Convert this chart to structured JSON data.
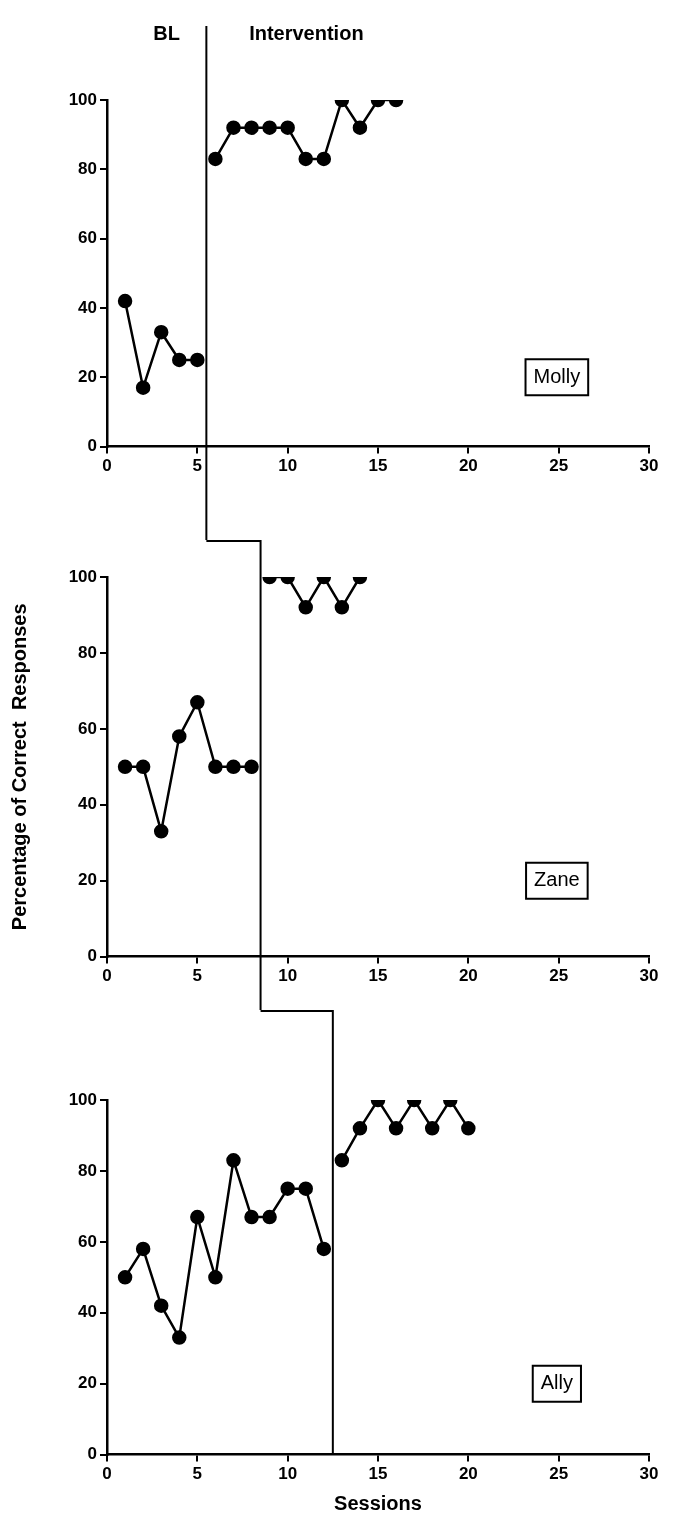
{
  "chart_data": [
    {
      "type": "line",
      "title": "Molly",
      "annotations": [
        "BL",
        "Intervention"
      ],
      "xlim": [
        0,
        30
      ],
      "xticks": [
        0,
        5,
        10,
        15,
        20,
        25,
        30
      ],
      "ylim": [
        0,
        100
      ],
      "yticks": [
        0,
        20,
        40,
        60,
        80,
        100
      ],
      "grid": false,
      "legend": false,
      "marker": "circle",
      "line_style": "solid",
      "ref_lines": [
        {
          "axis": "x",
          "value": 5.5
        }
      ],
      "series": [
        {
          "color": "#000000",
          "x": [
            1,
            2,
            3,
            4,
            5
          ],
          "values": [
            42,
            17,
            33,
            25,
            25
          ]
        },
        {
          "color": "#000000",
          "x": [
            6,
            7,
            8,
            9,
            10,
            11,
            12,
            13,
            14,
            15,
            16
          ],
          "values": [
            83,
            92,
            92,
            92,
            92,
            83,
            83,
            100,
            92,
            100,
            100
          ]
        }
      ]
    },
    {
      "type": "line",
      "title": "Zane",
      "ylabel": "Percentage of Correct  Responses",
      "xlim": [
        0,
        30
      ],
      "xticks": [
        0,
        5,
        10,
        15,
        20,
        25,
        30
      ],
      "ylim": [
        0,
        100
      ],
      "yticks": [
        0,
        20,
        40,
        60,
        80,
        100
      ],
      "grid": false,
      "legend": false,
      "marker": "circle",
      "line_style": "solid",
      "ref_lines": [
        {
          "axis": "x",
          "value": 8.5
        }
      ],
      "series": [
        {
          "color": "#000000",
          "x": [
            1,
            2,
            3,
            4,
            5,
            6,
            7,
            8
          ],
          "values": [
            50,
            50,
            33,
            58,
            67,
            50,
            50,
            50
          ]
        },
        {
          "color": "#000000",
          "x": [
            9,
            10,
            11,
            12,
            13,
            14
          ],
          "values": [
            100,
            100,
            92,
            100,
            92,
            100
          ]
        }
      ]
    },
    {
      "type": "line",
      "title": "Ally",
      "xlabel": "Sessions",
      "xlim": [
        0,
        30
      ],
      "xticks": [
        0,
        5,
        10,
        15,
        20,
        25,
        30
      ],
      "ylim": [
        0,
        100
      ],
      "yticks": [
        0,
        20,
        40,
        60,
        80,
        100
      ],
      "grid": false,
      "legend": false,
      "marker": "circle",
      "line_style": "solid",
      "ref_lines": [
        {
          "axis": "x",
          "value": 12.5
        }
      ],
      "series": [
        {
          "color": "#000000",
          "x": [
            1,
            2,
            3,
            4,
            5,
            6,
            7,
            8,
            9,
            10,
            11,
            12
          ],
          "values": [
            50,
            58,
            42,
            33,
            67,
            50,
            83,
            67,
            67,
            75,
            75,
            58
          ]
        },
        {
          "color": "#000000",
          "x": [
            13,
            14,
            15,
            16,
            17,
            18,
            19,
            20
          ],
          "values": [
            83,
            92,
            100,
            92,
            100,
            92,
            100,
            92
          ]
        }
      ]
    }
  ]
}
